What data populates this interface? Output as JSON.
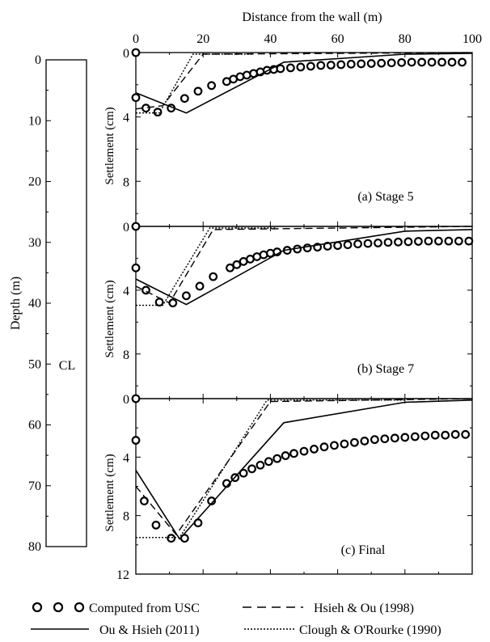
{
  "figure": {
    "top_axis_label": "Distance from the wall (m)",
    "top_ticks": [
      "0",
      "20",
      "40",
      "60",
      "80",
      "100"
    ],
    "depth_axis_label": "Depth (m)",
    "depth_ticks": [
      "0",
      "10",
      "20",
      "30",
      "40",
      "50",
      "60",
      "70",
      "80"
    ],
    "soil_label": "CL"
  },
  "chart_data": [
    {
      "type": "line",
      "panel": "(a) Stage 5",
      "title": "(a) Stage 5",
      "xlabel": "Distance from the wall (m)",
      "ylabel": "Settlement (cm)",
      "xlim": [
        0,
        100
      ],
      "ylim": [
        0,
        12
      ],
      "y_ticks": [
        "0",
        "4",
        "8"
      ],
      "y_inverted": true,
      "series": [
        {
          "name": "Computed from USC",
          "style": "circles",
          "x": [
            0,
            0,
            3,
            6.5,
            10.5,
            14.5,
            18.5,
            22.5,
            27,
            29,
            31,
            33,
            35,
            37,
            39,
            41,
            43,
            46,
            49,
            52,
            55,
            58,
            61,
            64,
            67,
            70,
            73,
            76,
            79,
            82,
            85,
            88,
            91,
            94,
            97
          ],
          "y": [
            0,
            2.8,
            3.45,
            3.7,
            3.45,
            2.85,
            2.4,
            2.05,
            1.8,
            1.65,
            1.5,
            1.4,
            1.3,
            1.2,
            1.1,
            1.05,
            1.0,
            0.95,
            0.9,
            0.85,
            0.8,
            0.78,
            0.75,
            0.72,
            0.7,
            0.68,
            0.66,
            0.64,
            0.62,
            0.6,
            0.6,
            0.6,
            0.6,
            0.6,
            0.6
          ]
        },
        {
          "name": "Ou & Hsieh (2011)",
          "style": "solid",
          "x": [
            0,
            15,
            44,
            80,
            100
          ],
          "y": [
            2.5,
            3.75,
            0.6,
            0.1,
            0.05
          ]
        },
        {
          "name": "Hsieh & Ou (1998)",
          "style": "dashed",
          "x": [
            0,
            8,
            20,
            100
          ],
          "y": [
            3.5,
            3.3,
            0.1,
            0.0
          ]
        },
        {
          "name": "Clough & O'Rourke (1990)",
          "style": "dotted",
          "x": [
            0,
            7,
            17,
            35
          ],
          "y": [
            3.75,
            3.75,
            0.1,
            0.1
          ]
        }
      ]
    },
    {
      "type": "line",
      "panel": "(b) Stage 7",
      "title": "(b) Stage 7",
      "xlabel": "Distance from the wall (m)",
      "ylabel": "Settlement (cm)",
      "xlim": [
        0,
        100
      ],
      "ylim": [
        0,
        12
      ],
      "y_ticks": [
        "0",
        "4",
        "8"
      ],
      "y_inverted": true,
      "series": [
        {
          "name": "Computed from USC",
          "style": "circles",
          "x": [
            0,
            0,
            3,
            7,
            11,
            15,
            19,
            23,
            28,
            30,
            32,
            34,
            36,
            38,
            40,
            42,
            45,
            48,
            51,
            54,
            57,
            60,
            63,
            66,
            69,
            72,
            75,
            78,
            81,
            84,
            87,
            90,
            93,
            96,
            99
          ],
          "y": [
            0,
            2.6,
            4.0,
            4.75,
            4.8,
            4.35,
            3.75,
            3.15,
            2.6,
            2.4,
            2.2,
            2.05,
            1.9,
            1.78,
            1.68,
            1.6,
            1.5,
            1.42,
            1.35,
            1.3,
            1.24,
            1.2,
            1.15,
            1.1,
            1.07,
            1.04,
            1.0,
            0.98,
            0.96,
            0.94,
            0.92,
            0.92,
            0.92,
            0.92,
            0.92
          ]
        },
        {
          "name": "Ou & Hsieh (2011)",
          "style": "solid",
          "x": [
            0,
            15,
            44,
            80,
            100
          ],
          "y": [
            3.3,
            4.9,
            1.5,
            0.3,
            0.2
          ]
        },
        {
          "name": "Hsieh & Ou (1998)",
          "style": "dashed",
          "x": [
            0,
            10,
            23,
            100
          ],
          "y": [
            3.75,
            4.8,
            0.2,
            0.0
          ]
        },
        {
          "name": "Clough & O'Rourke (1990)",
          "style": "dotted",
          "x": [
            0,
            8,
            22,
            42
          ],
          "y": [
            4.95,
            4.95,
            0.1,
            0.1
          ]
        }
      ]
    },
    {
      "type": "line",
      "panel": "(c) Final",
      "title": "(c) Final",
      "xlabel": "Distance from the wall (m)",
      "ylabel": "Settlement (cm)",
      "xlim": [
        0,
        100
      ],
      "ylim": [
        0,
        12
      ],
      "y_ticks": [
        "0",
        "4",
        "8",
        "12"
      ],
      "y_inverted": true,
      "series": [
        {
          "name": "Computed from USC",
          "style": "circles",
          "x": [
            0,
            0,
            2.5,
            6,
            10.5,
            14.5,
            18.5,
            22.5,
            27,
            29.5,
            32,
            34.5,
            37,
            39.5,
            42,
            44.5,
            47,
            50,
            53,
            56,
            59,
            62,
            65,
            68,
            71,
            74,
            77,
            80,
            83,
            86,
            89,
            92,
            95,
            98
          ],
          "y": [
            0,
            2.85,
            7.0,
            8.65,
            9.55,
            9.55,
            8.5,
            7.0,
            5.8,
            5.4,
            5.1,
            4.8,
            4.55,
            4.3,
            4.1,
            3.9,
            3.75,
            3.6,
            3.45,
            3.3,
            3.2,
            3.1,
            3.0,
            2.9,
            2.8,
            2.75,
            2.7,
            2.65,
            2.6,
            2.55,
            2.5,
            2.5,
            2.45,
            2.45
          ]
        },
        {
          "name": "Ou & Hsieh (2011)",
          "style": "solid",
          "x": [
            0,
            13,
            44,
            80,
            100
          ],
          "y": [
            4.9,
            9.6,
            1.65,
            0.25,
            0.1
          ]
        },
        {
          "name": "Hsieh & Ou (1998)",
          "style": "dashed",
          "x": [
            0,
            12,
            40,
            100
          ],
          "y": [
            6.0,
            9.3,
            0.2,
            0.0
          ]
        },
        {
          "name": "Clough & O'Rourke (1990)",
          "style": "dotted",
          "x": [
            0,
            13,
            39,
            80
          ],
          "y": [
            9.5,
            9.5,
            0.1,
            0.1
          ]
        }
      ]
    }
  ]
}
